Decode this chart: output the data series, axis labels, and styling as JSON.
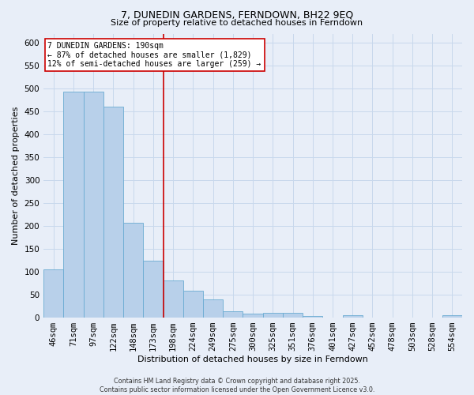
{
  "title": "7, DUNEDIN GARDENS, FERNDOWN, BH22 9EQ",
  "subtitle": "Size of property relative to detached houses in Ferndown",
  "xlabel": "Distribution of detached houses by size in Ferndown",
  "ylabel": "Number of detached properties",
  "footer": "Contains HM Land Registry data © Crown copyright and database right 2025.\nContains public sector information licensed under the Open Government Licence v3.0.",
  "categories": [
    "46sqm",
    "71sqm",
    "97sqm",
    "122sqm",
    "148sqm",
    "173sqm",
    "198sqm",
    "224sqm",
    "249sqm",
    "275sqm",
    "300sqm",
    "325sqm",
    "351sqm",
    "376sqm",
    "401sqm",
    "427sqm",
    "452sqm",
    "478sqm",
    "503sqm",
    "528sqm",
    "554sqm"
  ],
  "values": [
    106,
    493,
    493,
    460,
    207,
    124,
    82,
    58,
    40,
    14,
    8,
    11,
    11,
    4,
    0,
    5,
    0,
    0,
    0,
    0,
    6
  ],
  "bar_color": "#b8d0ea",
  "bar_edge_color": "#6aabd2",
  "grid_color": "#c8d8ec",
  "background_color": "#e8eef8",
  "vline_color": "#cc0000",
  "vline_index": 6,
  "annotation_text": "7 DUNEDIN GARDENS: 190sqm\n← 87% of detached houses are smaller (1,829)\n12% of semi-detached houses are larger (259) →",
  "annotation_box_color": "#ffffff",
  "annotation_box_edge": "#cc0000",
  "ylim": [
    0,
    620
  ],
  "yticks": [
    0,
    50,
    100,
    150,
    200,
    250,
    300,
    350,
    400,
    450,
    500,
    550,
    600
  ]
}
